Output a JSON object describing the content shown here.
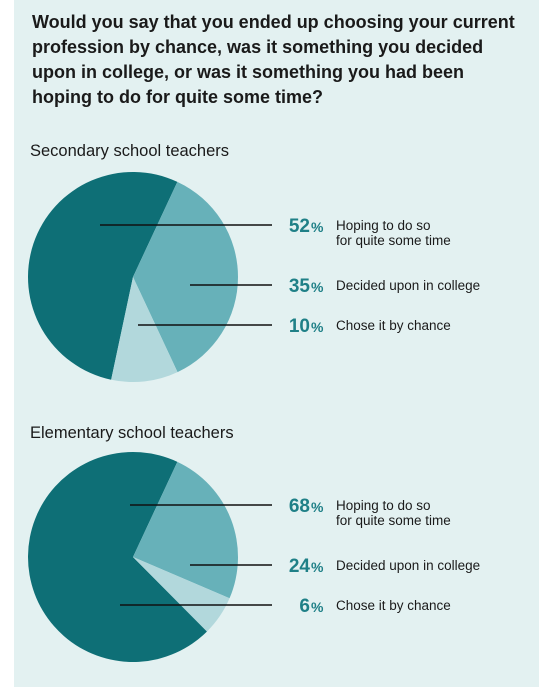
{
  "question": "Would you say that you ended up choosing your current profession by chance, was it something you decided upon in college, or was it something you had been hoping to do for quite some time?",
  "colors": {
    "hoping": "#0e6f76",
    "college": "#67b1b9",
    "chance": "#b2d8dc",
    "panel": "#e3f1f1",
    "accent_text": "#1f8087"
  },
  "chart_data": [
    {
      "type": "pie",
      "title": "Secondary school teachers",
      "slices": [
        {
          "label_lines": [
            "Hoping to do so",
            "for quite some time"
          ],
          "value": 52,
          "unit": "%"
        },
        {
          "label_lines": [
            "Decided upon in college"
          ],
          "value": 35,
          "unit": "%"
        },
        {
          "label_lines": [
            "Chose it by chance"
          ],
          "value": 10,
          "unit": "%"
        }
      ]
    },
    {
      "type": "pie",
      "title": "Elementary school teachers",
      "slices": [
        {
          "label_lines": [
            "Hoping to do so",
            "for quite some time"
          ],
          "value": 68,
          "unit": "%"
        },
        {
          "label_lines": [
            "Decided upon in college"
          ],
          "value": 24,
          "unit": "%"
        },
        {
          "label_lines": [
            "Chose it by chance"
          ],
          "value": 6,
          "unit": "%"
        }
      ]
    }
  ]
}
